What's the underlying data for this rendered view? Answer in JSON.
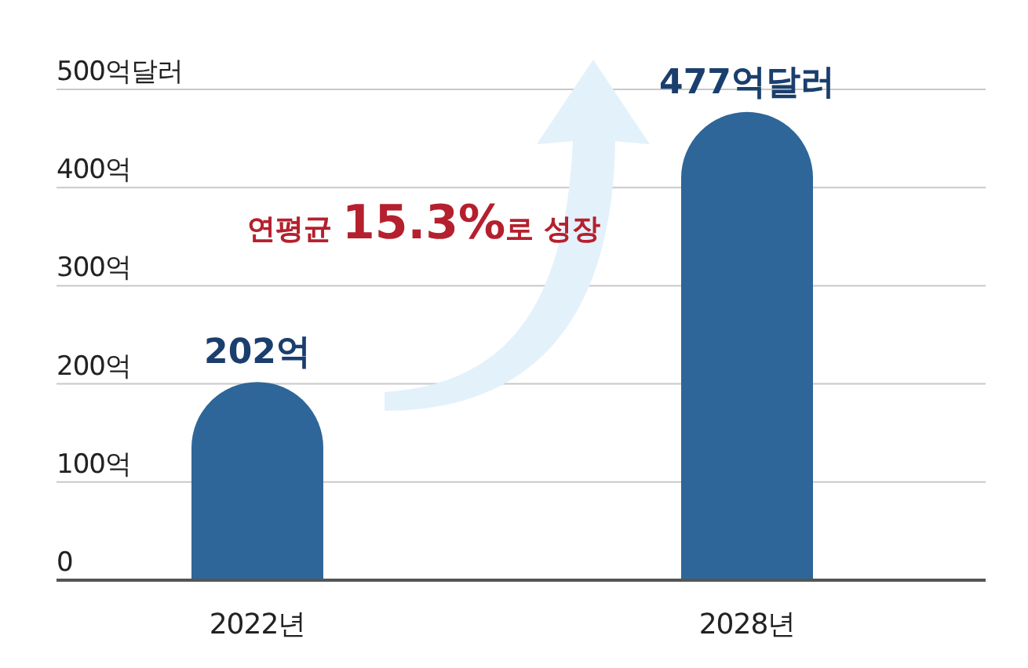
{
  "chart_data": {
    "type": "bar",
    "categories": [
      "2022년",
      "2028년"
    ],
    "values": [
      202,
      477
    ],
    "value_labels": [
      "202억",
      "477억달러"
    ],
    "color": "#2e6699",
    "ylim": [
      0,
      500
    ],
    "yticks": [
      {
        "value": 0,
        "label": "0"
      },
      {
        "value": 100,
        "label": "100억"
      },
      {
        "value": 200,
        "label": "200억"
      },
      {
        "value": 300,
        "label": "300억"
      },
      {
        "value": 400,
        "label": "400억"
      },
      {
        "value": 500,
        "label": "500억달러"
      }
    ],
    "grid": "y",
    "annotations": [
      "연평균 **15.3%**로 성장"
    ]
  }
}
